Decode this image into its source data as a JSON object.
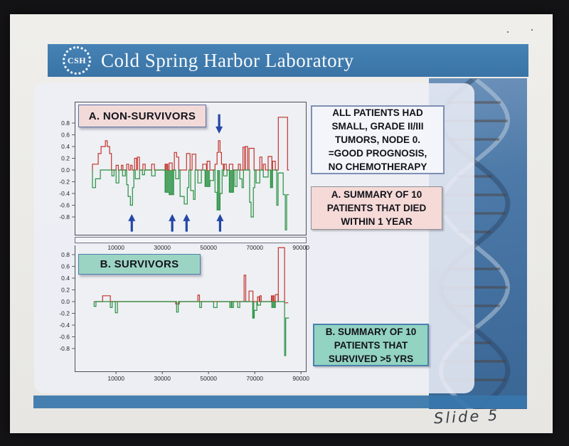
{
  "header": {
    "logo_text": "CSH",
    "title": "Cold Spring Harbor Laboratory"
  },
  "info_boxes": {
    "clinical": {
      "lines": [
        "ALL PATIENTS HAD",
        "SMALL, GRADE II/III",
        "TUMORS, NODE 0.",
        "=GOOD PROGNOSIS,",
        "NO CHEMOTHERAPY"
      ]
    },
    "a_summary": {
      "lines": [
        "A. SUMMARY OF 10",
        "PATIENTS THAT DIED",
        "WITHIN 1 YEAR"
      ]
    },
    "b_summary": {
      "lines": [
        "B. SUMMARY OF 10",
        "PATIENTS THAT",
        "SURVIVED >5 YRS"
      ]
    }
  },
  "annotations": {
    "handwritten_note": "Slide 5"
  },
  "colors": {
    "header_blue": "#3b77ae",
    "gain_red": "#c2332c",
    "loss_green": "#27903f",
    "arrow_blue": "#2547a5",
    "label_pink": "#f2dad9",
    "label_teal": "#9bd4c3",
    "footer_blue": "#3876ac"
  },
  "chart_data": [
    {
      "id": "A",
      "label": "A. NON-SURVIVORS",
      "type": "line",
      "description": "step profile of copy-number gains (red, up) and losses (green, down)",
      "x_ticks": [
        10000,
        30000,
        50000,
        70000,
        90000
      ],
      "y_tick_labels": [
        "0.8",
        "0.6",
        "0.4",
        "0.2",
        "0.0",
        "-0.2",
        "-0.4",
        "-0.6",
        "-0.8"
      ],
      "ylim": [
        -1.12,
        1.16
      ],
      "x_range": [
        -7900,
        92400
      ],
      "series": [
        {
          "name": "gains",
          "color": "#c2332c",
          "start_k": -0.2,
          "end_k": 84.8,
          "segments_k": [
            [
              -0.2,
              2.3,
              0.1
            ],
            [
              2.3,
              3.5,
              0.28
            ],
            [
              3.5,
              5.4,
              0.4
            ],
            [
              5.4,
              6.2,
              0.5
            ],
            [
              6.2,
              7.2,
              0.4
            ],
            [
              7.2,
              8.0,
              0.28
            ],
            [
              10.0,
              11.0,
              0.08
            ],
            [
              12.3,
              13.0,
              0.08
            ],
            [
              14.6,
              15.5,
              0.1
            ],
            [
              16.3,
              17.0,
              0.08
            ],
            [
              18.0,
              18.9,
              0.2
            ],
            [
              19.2,
              20.1,
              0.22
            ],
            [
              21.6,
              22.6,
              0.1
            ],
            [
              25.4,
              26.6,
              0.1
            ],
            [
              31.2,
              32.4,
              0.1,
              1
            ],
            [
              33.0,
              34.3,
              0.12
            ],
            [
              35.2,
              36.2,
              0.3
            ],
            [
              36.2,
              37.1,
              0.22
            ],
            [
              40.5,
              42.0,
              0.28
            ],
            [
              42.9,
              44.5,
              0.27
            ],
            [
              47.5,
              49.1,
              0.1
            ],
            [
              49.4,
              50.6,
              0.15
            ],
            [
              52.8,
              53.7,
              0.1
            ],
            [
              53.7,
              54.3,
              0.3
            ],
            [
              54.3,
              55.0,
              0.5
            ],
            [
              55.0,
              55.6,
              0.3
            ],
            [
              55.6,
              56.4,
              0.1
            ],
            [
              56.8,
              57.7,
              0.1
            ],
            [
              59.0,
              60.5,
              0.1
            ],
            [
              62.9,
              63.8,
              0.1
            ],
            [
              64.9,
              65.7,
              0.39
            ],
            [
              65.9,
              66.9,
              0.4
            ],
            [
              67.5,
              69.7,
              0.37
            ],
            [
              72.2,
              73.1,
              0.22
            ],
            [
              73.7,
              74.6,
              0.1
            ],
            [
              75.8,
              77.4,
              0.23
            ],
            [
              77.7,
              78.9,
              0.15
            ],
            [
              80.2,
              84.2,
              0.9
            ]
          ]
        },
        {
          "name": "losses",
          "color": "#27903f",
          "start_k": -0.2,
          "end_k": 84.8,
          "segments_k": [
            [
              -0.2,
              1.1,
              -0.3
            ],
            [
              1.1,
              3.2,
              -0.15
            ],
            [
              8.2,
              9.1,
              -0.1
            ],
            [
              10.0,
              11.2,
              -0.22
            ],
            [
              12.8,
              14.0,
              -0.1
            ],
            [
              14.6,
              15.2,
              -0.25
            ],
            [
              15.2,
              16.2,
              -0.45
            ],
            [
              16.2,
              17.1,
              -0.6
            ],
            [
              17.1,
              17.7,
              -0.3
            ],
            [
              18.3,
              20.2,
              -0.15
            ],
            [
              21.4,
              22.3,
              -0.08
            ],
            [
              25.4,
              26.9,
              -0.1
            ],
            [
              31.2,
              33.0,
              -0.38,
              1
            ],
            [
              33.0,
              34.9,
              -0.42,
              1
            ],
            [
              35.8,
              37.1,
              -0.15
            ],
            [
              37.7,
              39.5,
              -0.45
            ],
            [
              39.5,
              40.8,
              -0.58
            ],
            [
              40.8,
              41.5,
              -0.3
            ],
            [
              42.3,
              43.5,
              -0.35
            ],
            [
              43.5,
              44.2,
              -0.5
            ],
            [
              45.4,
              46.9,
              -0.22
            ],
            [
              48.5,
              50.6,
              -0.28,
              1
            ],
            [
              50.6,
              52.2,
              -0.18
            ],
            [
              52.8,
              53.7,
              -0.38
            ],
            [
              53.7,
              55.0,
              -0.68,
              1
            ],
            [
              55.0,
              55.9,
              -0.4
            ],
            [
              56.5,
              58.0,
              -0.1
            ],
            [
              59.0,
              60.8,
              -0.38,
              1
            ],
            [
              61.4,
              62.3,
              -0.28
            ],
            [
              63.5,
              64.5,
              -0.15
            ],
            [
              64.5,
              65.1,
              -0.3
            ],
            [
              67.8,
              68.4,
              -0.55
            ],
            [
              68.4,
              69.4,
              -0.8
            ],
            [
              69.4,
              70.0,
              -0.3
            ],
            [
              70.6,
              72.2,
              -0.22
            ],
            [
              73.7,
              75.8,
              -0.12
            ],
            [
              76.8,
              77.7,
              -0.3,
              1
            ],
            [
              79.5,
              80.1,
              -0.6
            ],
            [
              80.1,
              82.3,
              -0.05
            ],
            [
              82.3,
              83.2,
              -0.42
            ],
            [
              83.2,
              83.8,
              -1.02
            ],
            [
              83.8,
              84.8,
              -0.42
            ]
          ]
        }
      ],
      "arrows": {
        "color": "#2547a5",
        "down_k": [
          54.6
        ],
        "up_k": [
          16.8,
          34.3,
          40.5,
          55.0
        ]
      }
    },
    {
      "id": "B",
      "label": "B. SURVIVORS",
      "type": "line",
      "description": "step profile of copy-number gains (red, up) and losses (green, down)",
      "x_ticks": [
        10000,
        30000,
        50000,
        70000,
        90000
      ],
      "y_tick_labels": [
        "0.8",
        "0.6",
        "0.4",
        "0.2",
        "0.0",
        "-0.2",
        "-0.4",
        "-0.6",
        "-0.8"
      ],
      "ylim": [
        -1.2,
        0.96
      ],
      "x_range": [
        -7900,
        92400
      ],
      "series": [
        {
          "name": "gains",
          "color": "#c2332c",
          "start_k": 0.5,
          "end_k": 84.5,
          "segments_k": [
            [
              4.2,
              7.5,
              0.1
            ],
            [
              35.8,
              37.4,
              -0.04
            ],
            [
              45.4,
              46.1,
              0.11
            ],
            [
              65.4,
              66.1,
              0.45
            ],
            [
              67.5,
              69.2,
              0.18
            ],
            [
              71.2,
              71.9,
              0.08
            ],
            [
              72.2,
              72.8,
              0.1
            ],
            [
              77.2,
              78.3,
              0.1,
              1
            ],
            [
              78.9,
              80.1,
              0.12
            ],
            [
              80.2,
              82.9,
              0.92
            ],
            [
              82.9,
              84.5,
              -0.02
            ]
          ]
        },
        {
          "name": "losses",
          "color": "#27903f",
          "start_k": 0.5,
          "end_k": 84.8,
          "segments_k": [
            [
              0.5,
              1.3,
              -0.08
            ],
            [
              7.5,
              8.3,
              -0.1
            ],
            [
              9.7,
              10.6,
              -0.19
            ],
            [
              36.2,
              36.9,
              -0.18
            ],
            [
              46.2,
              47.0,
              -0.1
            ],
            [
              52.2,
              53.7,
              -0.1
            ],
            [
              59.2,
              59.8,
              -0.1
            ],
            [
              60.2,
              60.8,
              -0.1
            ],
            [
              62.6,
              63.5,
              -0.1
            ],
            [
              69.1,
              69.8,
              -0.28,
              1
            ],
            [
              69.8,
              70.9,
              -0.15
            ],
            [
              71.2,
              72.5,
              -0.06
            ],
            [
              77.4,
              78.9,
              -0.1,
              1
            ],
            [
              82.9,
              83.4,
              -0.92
            ],
            [
              83.4,
              84.8,
              -0.28
            ]
          ]
        }
      ],
      "arrows": {
        "color": "#2547a5",
        "down_k": [],
        "up_k": []
      }
    }
  ]
}
